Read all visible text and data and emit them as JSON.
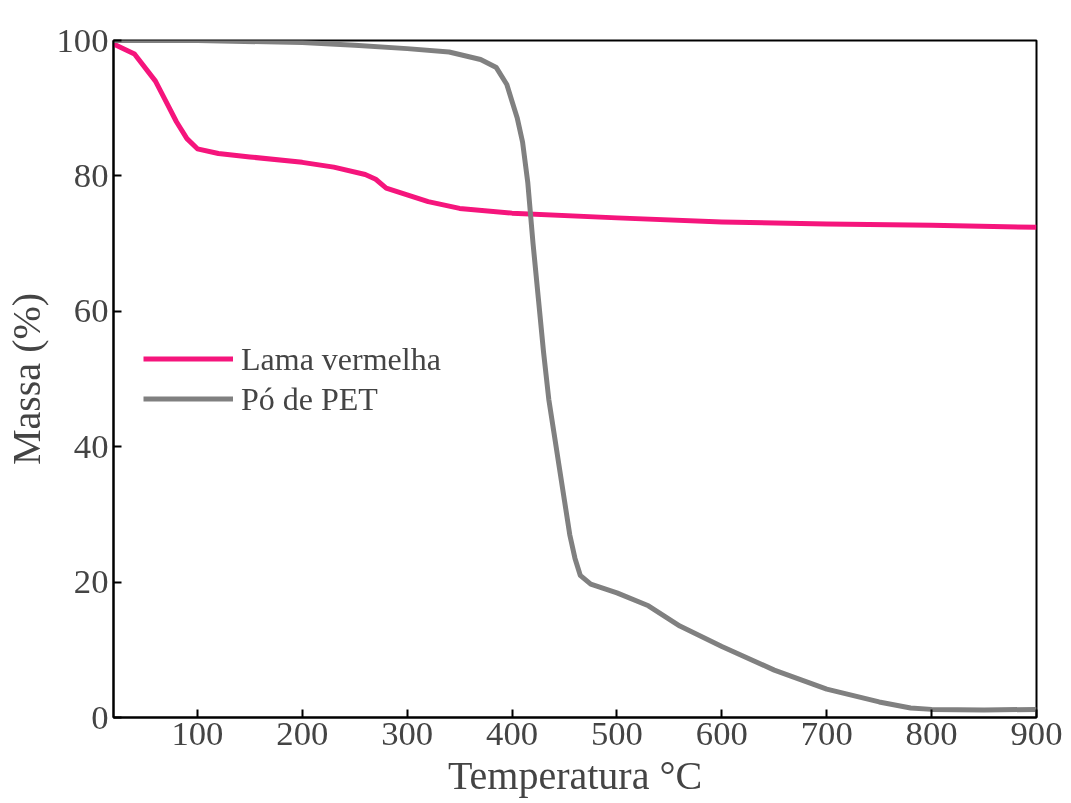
{
  "chart_data": {
    "type": "line",
    "xlabel": "Temperatura °C",
    "ylabel": "Massa (%)",
    "xlim": [
      20,
      900
    ],
    "ylim": [
      0,
      100
    ],
    "xticks": [
      100,
      200,
      300,
      400,
      500,
      600,
      700,
      800,
      900
    ],
    "yticks": [
      0,
      20,
      40,
      60,
      80,
      100
    ],
    "grid": false,
    "legend": "left",
    "marker": "none",
    "line_style": "solid",
    "series": [
      {
        "name": "Lama vermelha",
        "color": "#f5157c",
        "x": [
          20,
          40,
          60,
          70,
          80,
          90,
          100,
          120,
          150,
          200,
          230,
          260,
          270,
          280,
          300,
          320,
          350,
          400,
          500,
          600,
          700,
          800,
          900
        ],
        "values": [
          99.5,
          98,
          94,
          91,
          88,
          85.5,
          84,
          83.3,
          82.8,
          82,
          81.3,
          80.2,
          79.5,
          78.2,
          77.2,
          76.2,
          75.2,
          74.5,
          73.8,
          73.2,
          72.9,
          72.7,
          72.4
        ]
      },
      {
        "name": "Pó de PET",
        "color": "#808080",
        "x": [
          20,
          100,
          200,
          250,
          300,
          340,
          370,
          385,
          395,
          400,
          405,
          410,
          415,
          420,
          425,
          430,
          435,
          440,
          445,
          450,
          455,
          460,
          465,
          475,
          500,
          530,
          560,
          600,
          650,
          700,
          750,
          780,
          800,
          850,
          900
        ],
        "values": [
          100,
          100,
          99.7,
          99.3,
          98.8,
          98.3,
          97.2,
          96,
          93.5,
          91,
          88.5,
          85,
          79,
          70,
          62,
          54,
          47,
          42,
          37,
          32,
          27,
          23.5,
          21,
          19.7,
          18.4,
          16.5,
          13.5,
          10.5,
          7,
          4.2,
          2.3,
          1.4,
          1.2,
          1.1,
          1.2
        ]
      }
    ]
  }
}
